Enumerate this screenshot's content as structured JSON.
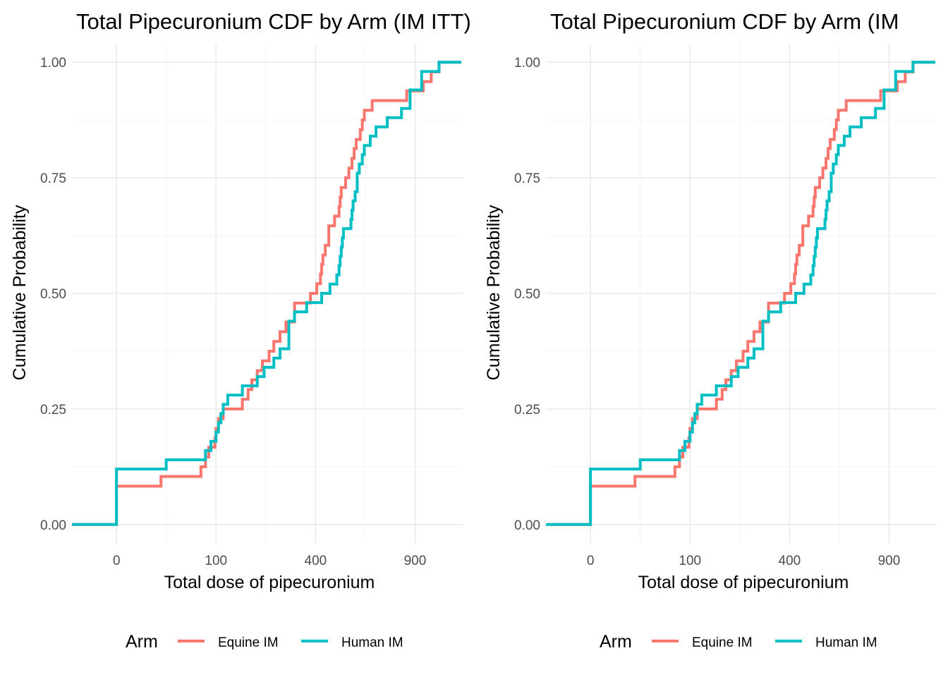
{
  "chart_data": [
    {
      "type": "line",
      "step": true,
      "title": "Total Pipecuronium CDF by Arm (IM ITT)",
      "xlabel": "Total dose of pipecuronium",
      "ylabel": "Cumulative Probability",
      "x_scale": "sqrt",
      "xlim": [
        -20,
        1210
      ],
      "ylim": [
        -0.04,
        1.04
      ],
      "x_ticks": [
        0,
        100,
        400,
        900
      ],
      "x_tick_labels": [
        "0",
        "100",
        "400",
        "900"
      ],
      "y_ticks": [
        0,
        0.25,
        0.5,
        0.75,
        1
      ],
      "y_tick_labels": [
        "0.00",
        "0.25",
        "0.50",
        "0.75",
        "1.00"
      ],
      "grid": true,
      "legend": {
        "title": "Arm",
        "position": "bottom"
      },
      "series": [
        {
          "name": "Equine IM",
          "color": "#F8766D",
          "x": [
            -20,
            0,
            20,
            72,
            80,
            86,
            92,
            98,
            100,
            105,
            115,
            160,
            175,
            185,
            200,
            215,
            235,
            250,
            270,
            290,
            320,
            350,
            380,
            405,
            420,
            425,
            430,
            440,
            455,
            475,
            480,
            485,
            500,
            505,
            510,
            530,
            545,
            560,
            570,
            580,
            600,
            610,
            620,
            660,
            700,
            775,
            850,
            950,
            1000,
            1050,
            1090,
            1200
          ],
          "y": [
            0,
            0.083,
            0.104,
            0.125,
            0.146,
            0.167,
            0.167,
            0.188,
            0.208,
            0.229,
            0.25,
            0.271,
            0.292,
            0.313,
            0.333,
            0.354,
            0.375,
            0.396,
            0.417,
            0.438,
            0.479,
            0.479,
            0.5,
            0.521,
            0.542,
            0.563,
            0.583,
            0.604,
            0.646,
            0.646,
            0.667,
            0.667,
            0.688,
            0.708,
            0.729,
            0.75,
            0.771,
            0.792,
            0.813,
            0.833,
            0.854,
            0.875,
            0.896,
            0.917,
            0.917,
            0.917,
            0.938,
            0.958,
            0.979,
            1.0,
            1.0,
            1.0
          ]
        },
        {
          "name": "Human IM",
          "color": "#00BFC4",
          "x": [
            -20,
            0,
            25,
            80,
            90,
            100,
            105,
            110,
            115,
            125,
            160,
            170,
            200,
            220,
            250,
            270,
            300,
            320,
            365,
            425,
            460,
            490,
            500,
            505,
            510,
            515,
            520,
            555,
            560,
            565,
            575,
            585,
            595,
            610,
            620,
            650,
            680,
            740,
            820,
            870,
            940,
            1050,
            1200
          ],
          "y": [
            0,
            0.12,
            0.14,
            0.16,
            0.18,
            0.2,
            0.22,
            0.24,
            0.26,
            0.28,
            0.3,
            0.3,
            0.32,
            0.34,
            0.36,
            0.38,
            0.44,
            0.46,
            0.48,
            0.5,
            0.52,
            0.54,
            0.56,
            0.58,
            0.6,
            0.62,
            0.64,
            0.66,
            0.68,
            0.7,
            0.72,
            0.76,
            0.78,
            0.8,
            0.82,
            0.84,
            0.86,
            0.88,
            0.9,
            0.94,
            0.98,
            1.0,
            1.0
          ]
        }
      ]
    },
    {
      "type": "line",
      "step": true,
      "title": "Total Pipecuronium CDF by Arm (IM",
      "xlabel": "Total dose of pipecuronium",
      "ylabel": "Cumulative Probability",
      "x_scale": "sqrt",
      "xlim": [
        -20,
        1210
      ],
      "ylim": [
        -0.04,
        1.04
      ],
      "x_ticks": [
        0,
        100,
        400,
        900
      ],
      "x_tick_labels": [
        "0",
        "100",
        "400",
        "900"
      ],
      "y_ticks": [
        0,
        0.25,
        0.5,
        0.75,
        1
      ],
      "y_tick_labels": [
        "0.00",
        "0.25",
        "0.50",
        "0.75",
        "1.00"
      ],
      "grid": true,
      "legend": {
        "title": "Arm",
        "position": "bottom"
      },
      "series": [
        {
          "name": "Equine IM",
          "color": "#F8766D",
          "x": [
            -20,
            0,
            20,
            72,
            80,
            86,
            92,
            98,
            100,
            105,
            115,
            160,
            175,
            185,
            200,
            215,
            235,
            250,
            270,
            290,
            320,
            350,
            380,
            405,
            420,
            425,
            430,
            440,
            455,
            475,
            480,
            485,
            500,
            505,
            510,
            530,
            545,
            560,
            570,
            580,
            600,
            610,
            620,
            660,
            700,
            775,
            850,
            950,
            1000,
            1050,
            1090,
            1200
          ],
          "y": [
            0,
            0.083,
            0.104,
            0.125,
            0.146,
            0.167,
            0.167,
            0.188,
            0.208,
            0.229,
            0.25,
            0.271,
            0.292,
            0.313,
            0.333,
            0.354,
            0.375,
            0.396,
            0.417,
            0.438,
            0.479,
            0.479,
            0.5,
            0.521,
            0.542,
            0.563,
            0.583,
            0.604,
            0.646,
            0.646,
            0.667,
            0.667,
            0.688,
            0.708,
            0.729,
            0.75,
            0.771,
            0.792,
            0.813,
            0.833,
            0.854,
            0.875,
            0.896,
            0.917,
            0.917,
            0.917,
            0.938,
            0.958,
            0.979,
            1.0,
            1.0,
            1.0
          ]
        },
        {
          "name": "Human IM",
          "color": "#00BFC4",
          "x": [
            -20,
            0,
            25,
            80,
            90,
            100,
            105,
            110,
            115,
            125,
            160,
            170,
            200,
            220,
            250,
            270,
            300,
            320,
            365,
            425,
            460,
            490,
            500,
            505,
            510,
            515,
            520,
            555,
            560,
            565,
            575,
            585,
            595,
            610,
            620,
            650,
            680,
            740,
            820,
            870,
            940,
            1050,
            1200
          ],
          "y": [
            0,
            0.12,
            0.14,
            0.16,
            0.18,
            0.2,
            0.22,
            0.24,
            0.26,
            0.28,
            0.3,
            0.3,
            0.32,
            0.34,
            0.36,
            0.38,
            0.44,
            0.46,
            0.48,
            0.5,
            0.52,
            0.54,
            0.56,
            0.58,
            0.6,
            0.62,
            0.64,
            0.66,
            0.68,
            0.7,
            0.72,
            0.76,
            0.78,
            0.8,
            0.82,
            0.84,
            0.86,
            0.88,
            0.9,
            0.94,
            0.98,
            1.0,
            1.0
          ]
        }
      ]
    }
  ]
}
